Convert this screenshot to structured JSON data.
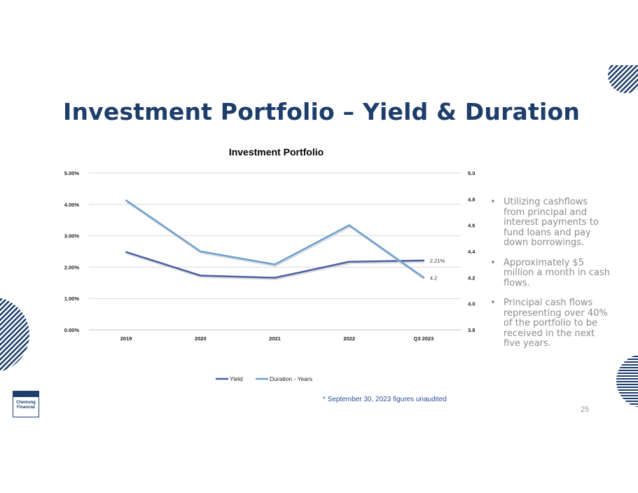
{
  "slide": {
    "title": "Investment Portfolio – Yield & Duration",
    "page_number": "25",
    "footnote": "* September 30, 2023 figures unaudited",
    "logo_lines": [
      "Chemung",
      "Financial"
    ]
  },
  "bullets": [
    "Utilizing cashflows from principal and interest payments to fund loans and pay down borrowings.",
    "Approximately $5 million a month in cash flows.",
    "Principal cash flows representing over 40% of the portfolio to be received in the next five years."
  ],
  "bullet_symbol": "•",
  "chart_data": {
    "type": "line",
    "title": "Investment Portfolio",
    "categories": [
      "2019",
      "2020",
      "2021",
      "2022",
      "Q3 2023"
    ],
    "series": [
      {
        "name": "Yield",
        "axis": "left",
        "values": [
          2.48,
          1.73,
          1.66,
          2.17,
          2.21
        ],
        "color": "#4a5fa3"
      },
      {
        "name": "Duration - Years",
        "axis": "right",
        "values": [
          4.79,
          4.4,
          4.3,
          4.6,
          4.2
        ],
        "color": "#6b9fd0"
      }
    ],
    "y_left": {
      "min": 0,
      "max": 5,
      "ticks": [
        "0.00%",
        "1.00%",
        "2.00%",
        "3.00%",
        "4.00%",
        "5.00%"
      ]
    },
    "y_right": {
      "min": 3.8,
      "max": 5.0,
      "ticks": [
        "3.8",
        "4.0",
        "4.2",
        "4.4",
        "4.6",
        "4.8",
        "5.0"
      ]
    },
    "data_labels": [
      {
        "series": "Yield",
        "index": 4,
        "text": "2.21%"
      },
      {
        "series": "Duration - Years",
        "index": 4,
        "text": "4.2"
      }
    ],
    "legend_position": "bottom",
    "grid": true
  },
  "colors": {
    "title": "#1d3d6b",
    "accent": "#2f5fa0",
    "grid": "#d9d9d9"
  }
}
